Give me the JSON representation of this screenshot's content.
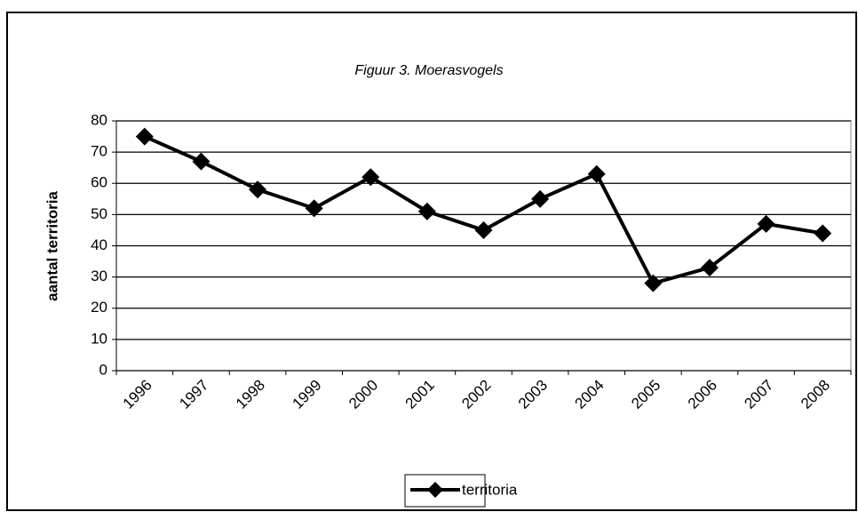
{
  "chart_data": {
    "type": "line",
    "title": "Figuur 3. Moerasvogels",
    "y_label": "aantal territoria",
    "categories": [
      "1996",
      "1997",
      "1998",
      "1999",
      "2000",
      "2001",
      "2002",
      "2003",
      "2004",
      "2005",
      "2006",
      "2007",
      "2008"
    ],
    "series": [
      {
        "name": "territoria",
        "color": "#000000",
        "values": [
          75,
          67,
          58,
          52,
          62,
          51,
          45,
          55,
          63,
          28,
          33,
          47,
          44
        ]
      }
    ],
    "ylim": [
      0,
      80
    ],
    "yticks": [
      0,
      10,
      20,
      30,
      40,
      50,
      60,
      70,
      80
    ],
    "grid": true,
    "legend": "bottom"
  }
}
